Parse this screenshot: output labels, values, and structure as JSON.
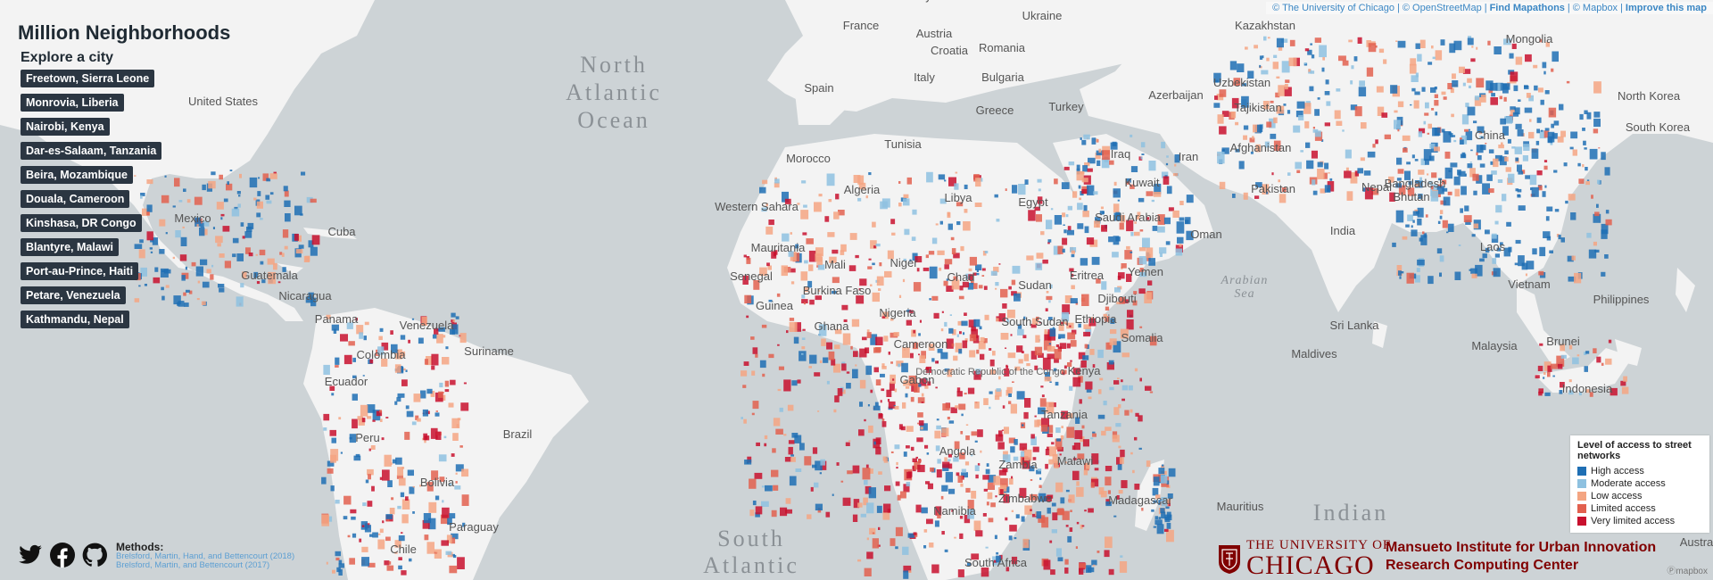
{
  "app": {
    "title": "Million Neighborhoods",
    "explore_label": "Explore a city"
  },
  "cities": [
    "Freetown, Sierra Leone",
    "Monrovia, Liberia",
    "Nairobi, Kenya",
    "Dar-es-Salaam, Tanzania",
    "Beira, Mozambique",
    "Douala, Cameroon",
    "Kinshasa, DR Congo",
    "Blantyre, Malawi",
    "Port-au-Prince, Haiti",
    "Petare, Venezuela",
    "Kathmandu, Nepal"
  ],
  "attribution": {
    "uchicago": "© The University of Chicago",
    "osm": "© OpenStreetMap",
    "mapathons": "Find Mapathons",
    "mapbox": "© Mapbox",
    "improve": "Improve this map"
  },
  "legend": {
    "title": "Level of access to street networks",
    "items": [
      {
        "label": "High access",
        "color": "#1f6fb4"
      },
      {
        "label": "Moderate access",
        "color": "#8ec1e0"
      },
      {
        "label": "Low access",
        "color": "#f4a582"
      },
      {
        "label": "Limited access",
        "color": "#e2604f"
      },
      {
        "label": "Very limited access",
        "color": "#c8102e"
      }
    ]
  },
  "map_labels": {
    "oceans": {
      "north_atlantic": [
        "North",
        "Atlantic",
        "Ocean"
      ],
      "south_atlantic": [
        "South",
        "Atlantic"
      ],
      "indian": [
        "Indian"
      ],
      "arabian_sea": [
        "Arabian",
        "Sea"
      ]
    },
    "countries": [
      "France",
      "Ukraine",
      "Kazakhstan",
      "Mongolia",
      "Austria",
      "Croatia",
      "Romania",
      "Spain",
      "Italy",
      "Bulgaria",
      "Greece",
      "Turkey",
      "Azerbaijan",
      "Uzbekistan",
      "Tajikistan",
      "North Korea",
      "Tunisia",
      "Morocco",
      "Iraq",
      "Iran",
      "Afghanistan",
      "China",
      "South Korea",
      "Algeria",
      "Libya",
      "Egypt",
      "Kuwait",
      "Pakistan",
      "Nepal",
      "Bhutan",
      "Western Sahara",
      "Saudi Arabia",
      "Oman",
      "India",
      "Bangladesh",
      "Mauritania",
      "Mali",
      "Niger",
      "Chad",
      "Sudan",
      "Yemen",
      "Eritrea",
      "Laos",
      "Senegal",
      "Guinea",
      "Burkina Faso",
      "Ghana",
      "Nigeria",
      "Djibouti",
      "Ethiopia",
      "Vietnam",
      "Philippines",
      "South Sudan",
      "Somalia",
      "Sri Lanka",
      "Cameroon",
      "Gabon",
      "Kenya",
      "Maldives",
      "Malaysia",
      "Brunei",
      "Democratic Republic of the Congo",
      "Tanzania",
      "Indonesia",
      "Angola",
      "Zambia",
      "Malawi",
      "Zimbabwe",
      "Namibia",
      "Madagascar",
      "Mauritius",
      "South Africa",
      "United States",
      "Mexico",
      "Cuba",
      "Guatemala",
      "Nicaragua",
      "Panama",
      "Venezuela",
      "Colombia",
      "Suriname",
      "Ecuador",
      "Peru",
      "Brazil",
      "Bolivia",
      "Paraguay",
      "Chile",
      "Australia",
      "Germany"
    ]
  },
  "methods": {
    "title": "Methods:",
    "refs": [
      "Brelsford, Martin, Hand, and Bettencourt (2018)",
      "Brelsford, Martin, and Bettencourt (2017)"
    ]
  },
  "branding": {
    "uc_small": "THE UNIVERSITY OF",
    "uc_big": "CHICAGO",
    "institute": "Mansueto Institute for Urban Innovation",
    "center": "Research Computing Center",
    "mapbox_logo": "mapbox"
  },
  "icons": [
    "twitter-icon",
    "facebook-icon",
    "github-icon",
    "crest-icon"
  ]
}
